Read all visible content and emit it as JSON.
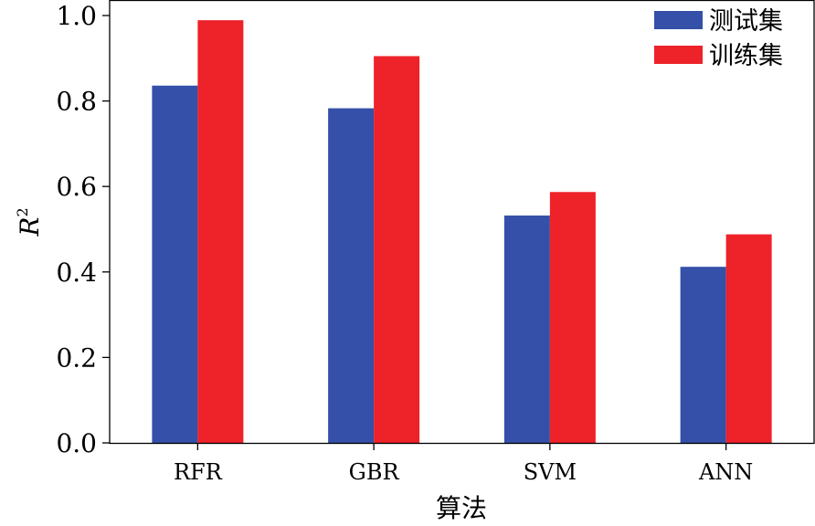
{
  "chart_data": {
    "type": "bar",
    "title": "",
    "xlabel": "算法",
    "ylabel": "R",
    "ylabel_superscript": "2",
    "categories": [
      "RFR",
      "GBR",
      "SVM",
      "ANN"
    ],
    "ylim": [
      0.0,
      1.0
    ],
    "yticks": [
      "0.0",
      "0.2",
      "0.4",
      "0.6",
      "0.8",
      "1.0"
    ],
    "grid": false,
    "legend_position": "top-right",
    "series": [
      {
        "name": "测试集",
        "color": "#3450a8",
        "values": [
          0.836,
          0.783,
          0.532,
          0.412
        ]
      },
      {
        "name": "训练集",
        "color": "#ee2229",
        "values": [
          0.989,
          0.905,
          0.587,
          0.488
        ]
      }
    ]
  }
}
